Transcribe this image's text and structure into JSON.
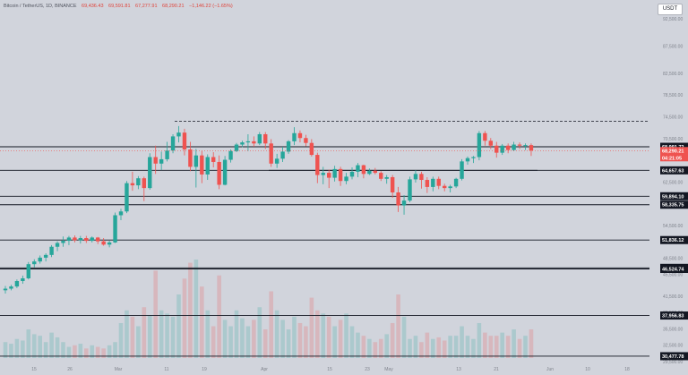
{
  "header": {
    "symbol": "Bitcoin / TetherUS, 1D, BINANCE",
    "open": "69,436.43",
    "high": "69,591.81",
    "low": "67,277.91",
    "close": "68,290.21",
    "change": "−1,146.22 (−1.65%)"
  },
  "unit_label": "USDT",
  "colors": {
    "up": "#26a69a",
    "down": "#ef5350",
    "bg": "#d1d4dc",
    "line": "#131722"
  },
  "chart_data": {
    "type": "candlestick",
    "ylim": [
      28500,
      95000
    ],
    "y_ticks": [
      "92,500.00",
      "87,500.00",
      "82,500.00",
      "78,500.00",
      "74,500.00",
      "70,500.00",
      "62,500.00",
      "54,500.00",
      "48,500.00",
      "45,500.00",
      "41,500.00",
      "38,500.00",
      "35,500.00",
      "32,500.00",
      "29,500.00"
    ],
    "x_ticks": [
      "15",
      "26",
      "Mar",
      "11",
      "19",
      "Apr",
      "15",
      "23",
      "May",
      "13",
      "21",
      "Jun",
      "10",
      "18"
    ],
    "levels": [
      {
        "value": "68,991.72",
        "y": 68991.72,
        "style": "solid"
      },
      {
        "value": "64,657.63",
        "y": 64657.63,
        "style": "solid"
      },
      {
        "value": "59,894.10",
        "y": 59894.1,
        "style": "solid"
      },
      {
        "value": "58,335.75",
        "y": 58335.75,
        "style": "solid"
      },
      {
        "value": "51,836.12",
        "y": 51836.12,
        "style": "solid"
      },
      {
        "value": "46,721.74",
        "y": 46721.74,
        "style": "solid"
      },
      {
        "value": "46,524.74",
        "y": 46524.74,
        "style": "solid"
      },
      {
        "value": "37,956.83",
        "y": 37956.83,
        "style": "solid"
      },
      {
        "value": "30,477.78",
        "y": 30477.78,
        "style": "solid"
      },
      {
        "value": "",
        "y": 73700,
        "style": "dashed"
      }
    ],
    "current_price": {
      "value": "68,290.21",
      "countdown": "04:21:05"
    },
    "candles": [
      [
        42600,
        43400,
        42000,
        42900
      ],
      [
        42900,
        43600,
        42600,
        43300
      ],
      [
        43300,
        44600,
        43000,
        44300
      ],
      [
        44300,
        45300,
        43800,
        44800
      ],
      [
        44800,
        47800,
        44600,
        47400
      ],
      [
        47400,
        48300,
        46800,
        47900
      ],
      [
        47900,
        49000,
        47500,
        48600
      ],
      [
        48600,
        49400,
        47900,
        49100
      ],
      [
        49100,
        50900,
        48700,
        50600
      ],
      [
        50600,
        51600,
        49800,
        51300
      ],
      [
        51300,
        52500,
        50600,
        51700
      ],
      [
        51700,
        52600,
        50900,
        52300
      ],
      [
        52300,
        52700,
        51400,
        51800
      ],
      [
        51800,
        52600,
        51200,
        52200
      ],
      [
        52200,
        52600,
        51300,
        51700
      ],
      [
        51700,
        52500,
        51400,
        52300
      ],
      [
        52300,
        52400,
        51100,
        51600
      ],
      [
        51600,
        52200,
        50800,
        51000
      ],
      [
        51000,
        51700,
        50500,
        51400
      ],
      [
        51400,
        56900,
        51300,
        56400
      ],
      [
        56400,
        57600,
        55500,
        57100
      ],
      [
        57100,
        62700,
        56800,
        62300
      ],
      [
        62300,
        64400,
        60900,
        61900
      ],
      [
        61900,
        63600,
        61200,
        63200
      ],
      [
        63200,
        63500,
        59000,
        61400
      ],
      [
        61400,
        67800,
        61100,
        67100
      ],
      [
        67100,
        69200,
        64000,
        65900
      ],
      [
        65900,
        68100,
        64700,
        66700
      ],
      [
        66700,
        69900,
        66300,
        68300
      ],
      [
        68300,
        71300,
        67800,
        70900
      ],
      [
        70900,
        72800,
        69800,
        71600
      ],
      [
        71600,
        72300,
        67400,
        68500
      ],
      [
        68500,
        69900,
        64500,
        65300
      ],
      [
        65300,
        68600,
        61500,
        67400
      ],
      [
        67400,
        68200,
        62300,
        63900
      ],
      [
        63900,
        67600,
        62900,
        67100
      ],
      [
        67100,
        68000,
        65200,
        66200
      ],
      [
        66200,
        67400,
        61200,
        62000
      ],
      [
        62000,
        67300,
        61900,
        66600
      ],
      [
        66600,
        68500,
        66100,
        68200
      ],
      [
        68200,
        69700,
        68000,
        69400
      ],
      [
        69400,
        70100,
        68900,
        69800
      ],
      [
        69800,
        71300,
        68200,
        70000
      ],
      [
        70000,
        70900,
        69000,
        69600
      ],
      [
        69600,
        71700,
        69300,
        71300
      ],
      [
        71300,
        71700,
        68600,
        69600
      ],
      [
        69600,
        70400,
        65300,
        65900
      ],
      [
        65900,
        67700,
        65100,
        66800
      ],
      [
        66800,
        69000,
        66200,
        68100
      ],
      [
        68100,
        70200,
        67700,
        70000
      ],
      [
        70000,
        72600,
        69300,
        71500
      ],
      [
        71500,
        72000,
        69800,
        70600
      ],
      [
        70600,
        71200,
        69100,
        69700
      ],
      [
        69700,
        70400,
        67200,
        67500
      ],
      [
        67500,
        67900,
        62300,
        63800
      ],
      [
        63800,
        65300,
        62100,
        64200
      ],
      [
        64200,
        64800,
        61400,
        63300
      ],
      [
        63300,
        65500,
        62600,
        64900
      ],
      [
        64900,
        65300,
        61800,
        62700
      ],
      [
        62700,
        64200,
        62100,
        63500
      ],
      [
        63500,
        65200,
        63000,
        64400
      ],
      [
        64400,
        66000,
        63400,
        65600
      ],
      [
        65600,
        65700,
        63200,
        64000
      ],
      [
        64000,
        65000,
        63800,
        64600
      ],
      [
        64600,
        65100,
        63900,
        64200
      ],
      [
        64200,
        64500,
        62700,
        63100
      ],
      [
        63100,
        63800,
        62200,
        63400
      ],
      [
        63400,
        63800,
        59600,
        60600
      ],
      [
        60600,
        61600,
        57000,
        58200
      ],
      [
        58200,
        60100,
        56500,
        59100
      ],
      [
        59100,
        63500,
        58800,
        63000
      ],
      [
        63000,
        64700,
        62400,
        64000
      ],
      [
        64000,
        64400,
        61300,
        62900
      ],
      [
        62900,
        63400,
        60500,
        61600
      ],
      [
        61600,
        63500,
        60800,
        63100
      ],
      [
        63100,
        63500,
        61200,
        61800
      ],
      [
        61800,
        62200,
        60800,
        61400
      ],
      [
        61400,
        62000,
        60600,
        61700
      ],
      [
        61700,
        63300,
        61400,
        63100
      ],
      [
        63100,
        66700,
        62800,
        66300
      ],
      [
        66300,
        67200,
        65700,
        66900
      ],
      [
        66900,
        67300,
        66000,
        67100
      ],
      [
        67100,
        71900,
        66500,
        71500
      ],
      [
        71500,
        71900,
        69200,
        70100
      ],
      [
        70100,
        70600,
        68600,
        69200
      ],
      [
        69200,
        69900,
        67000,
        67900
      ],
      [
        67900,
        69500,
        67500,
        69200
      ],
      [
        69200,
        69600,
        67800,
        68400
      ],
      [
        68400,
        69900,
        68200,
        69400
      ],
      [
        69400,
        69800,
        68600,
        69200
      ],
      [
        69200,
        69600,
        68400,
        69300
      ],
      [
        69300,
        69600,
        67300,
        68290
      ]
    ],
    "volumes": [
      10,
      9,
      12,
      11,
      18,
      15,
      14,
      10,
      16,
      13,
      10,
      7,
      8,
      9,
      6,
      8,
      7,
      6,
      8,
      10,
      22,
      30,
      26,
      20,
      32,
      27,
      55,
      30,
      28,
      26,
      40,
      50,
      60,
      62,
      45,
      30,
      20,
      52,
      24,
      20,
      30,
      25,
      20,
      24,
      32,
      18,
      42,
      30,
      24,
      18,
      26,
      22,
      20,
      38,
      30,
      28,
      26,
      20,
      24,
      28,
      20,
      16,
      14,
      12,
      10,
      12,
      15,
      22,
      40,
      26,
      12,
      14,
      10,
      16,
      12,
      13,
      11,
      14,
      14,
      20,
      14,
      12,
      22,
      16,
      14,
      14,
      16,
      14,
      18,
      12,
      14,
      18
    ]
  }
}
